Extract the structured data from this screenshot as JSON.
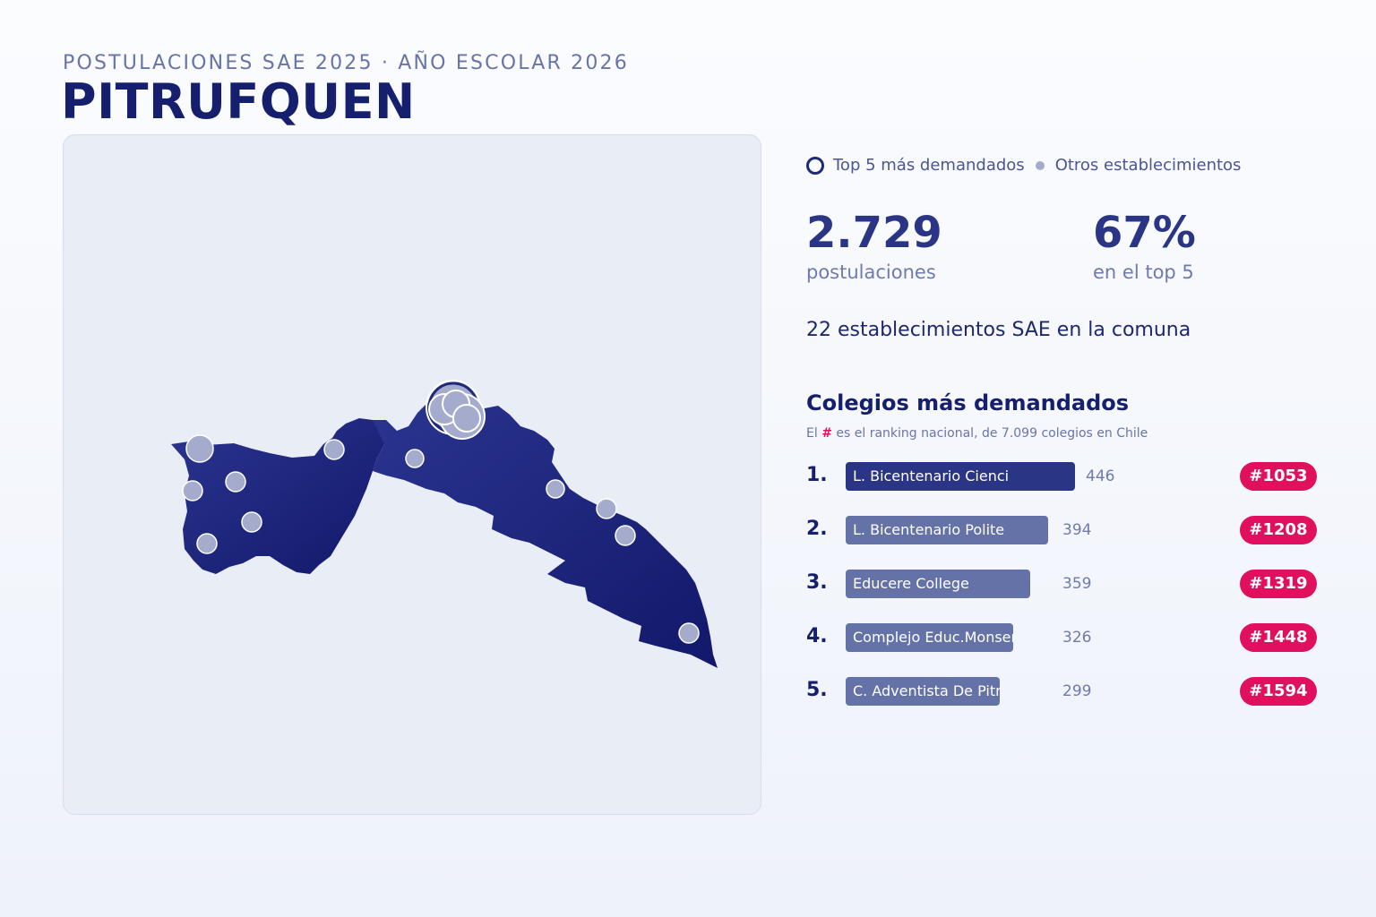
{
  "header": {
    "subtitle": "POSTULACIONES SAE 2025 · AÑO ESCOLAR 2026",
    "title": "PITRUFQUEN"
  },
  "legend": {
    "top5_label": "Top 5 más demandados",
    "others_label": "Otros establecimientos"
  },
  "stats": {
    "applications_value": "2.729",
    "applications_label": "postulaciones",
    "top5_share_value": "67%",
    "top5_share_label": "en el top 5"
  },
  "establishments_line": "22 establecimientos SAE en la comuna",
  "ranking": {
    "title": "Colegios más demandados",
    "note_prefix": "El",
    "note_hash": "#",
    "note_suffix": "es el ranking nacional, de 7.099 colegios en Chile",
    "items": [
      {
        "position": "1.",
        "name": "L. Bicentenario Cienci",
        "applications": 446,
        "applications_label": "446",
        "national_rank": "#1053"
      },
      {
        "position": "2.",
        "name": "L. Bicentenario Polite",
        "applications": 394,
        "applications_label": "394",
        "national_rank": "#1208"
      },
      {
        "position": "3.",
        "name": "Educere College",
        "applications": 359,
        "applications_label": "359",
        "national_rank": "#1319"
      },
      {
        "position": "4.",
        "name": "Complejo Educ.Monsenor",
        "applications": 326,
        "applications_label": "326",
        "national_rank": "#1448"
      },
      {
        "position": "5.",
        "name": "C. Adventista De Pitru",
        "applications": 299,
        "applications_label": "299",
        "national_rank": "#1594"
      }
    ]
  },
  "colors": {
    "region_fill": "#252f82",
    "region_fill_dark": "#14196a",
    "marker_fill": "#a4abcd",
    "top_marker_ring": "#1f2a78",
    "badge": "#e0105f",
    "bar_first": "#2a3585",
    "bar_other": "#6572a8"
  }
}
